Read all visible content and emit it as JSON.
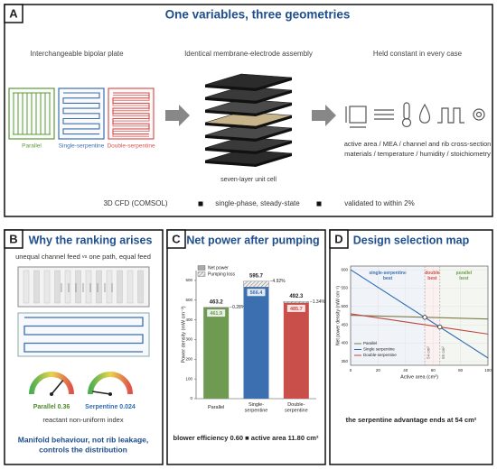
{
  "panel_labels": [
    "A",
    "B",
    "C",
    "D"
  ],
  "panel_a": {
    "title": "One variables, three geometries",
    "columns": [
      "Interchangeable bipolar plate",
      "Identical membrane-electrode assembly",
      "Held constant in every case"
    ],
    "plates": [
      {
        "name": "Parallel",
        "color": "#5e9a3a"
      },
      {
        "name": "Single-serpentine",
        "color": "#3a6fb0"
      },
      {
        "name": "Double-serpentine",
        "color": "#d9534f"
      }
    ],
    "stack_caption": "seven-layer unit cell",
    "constants": [
      "active area / MEA / channel and rib cross-section",
      "materials / temperature / humidity / stoichiometry"
    ],
    "methods": [
      "3D CFD (COMSOL)",
      "single-phase, steady-state",
      "validated to within 2%"
    ]
  },
  "panel_b": {
    "title": "Why the ranking arises",
    "subtitle_parts": [
      "unequal channel feed",
      "vs",
      "one path, equal feed"
    ],
    "gauges": [
      {
        "name": "Parallel",
        "value": 0.36,
        "color": "#4e8a2e"
      },
      {
        "name": "Serpentine",
        "value": 0.024,
        "color": "#2f6db3"
      }
    ],
    "gauge_lim": [
      0,
      0.5
    ],
    "gauge_caption": "reactant non-uniform index",
    "conclusion": "Manifold behaviour, not rib leakage, controls the distribution"
  },
  "chart_data": [
    {
      "type": "bar",
      "title": "Net power after pumping",
      "ylabel": "Power density (mW cm⁻²)",
      "categories": [
        "Parallel",
        "Single-serpentine",
        "Double-serpentine"
      ],
      "colors": [
        "#6f9a52",
        "#3c6fb0",
        "#c9504a"
      ],
      "series": [
        {
          "name": "Net power",
          "values": [
            461.9,
            566.4,
            485.7
          ]
        },
        {
          "name": "Pumping loss",
          "values": [
            1.3,
            29.3,
            6.6
          ]
        }
      ],
      "totals": [
        463.2,
        595.7,
        492.3
      ],
      "changes": [
        "−0.28%",
        "−4.92%",
        "−1.34%"
      ],
      "ylim": [
        0,
        650
      ],
      "yticks": [
        0,
        100,
        200,
        300,
        400,
        500,
        600
      ],
      "footer": [
        "blower efficiency 0.60",
        "active area 11.80 cm²"
      ]
    },
    {
      "type": "line",
      "title": "Design selection map",
      "xlabel": "Active area (cm²)",
      "ylabel": "Net power density (mW cm⁻²)",
      "x": [
        0,
        100
      ],
      "series": [
        {
          "name": "Parallel",
          "color": "#7a7a4a",
          "values": [
            476,
            466
          ]
        },
        {
          "name": "Single serpentine",
          "color": "#2f6db3",
          "values": [
            600,
            360
          ]
        },
        {
          "name": "Double-serpentine",
          "color": "#c0453f",
          "values": [
            480,
            425
          ]
        }
      ],
      "xlim": [
        0,
        100
      ],
      "xticks": [
        0,
        20,
        40,
        60,
        80,
        100
      ],
      "ylim": [
        340,
        610
      ],
      "yticks": [
        350,
        400,
        450,
        500,
        550,
        600
      ],
      "grid": true,
      "legend": "lower left",
      "thresholds": [
        {
          "value": 54,
          "label": "54 cm²"
        },
        {
          "value": 65,
          "label": "65 cm²"
        }
      ],
      "regions": [
        {
          "label": "single-serpentine best",
          "color": "#3c6fb0"
        },
        {
          "label": "double best",
          "color": "#c9504a"
        },
        {
          "label": "parallel best",
          "color": "#6f9a52"
        }
      ],
      "crossings": {
        "x": [
          54,
          65
        ],
        "y": [
          470.5,
          444.1
        ]
      },
      "footer": "the serpentine advantage ends at 54 cm²"
    }
  ]
}
